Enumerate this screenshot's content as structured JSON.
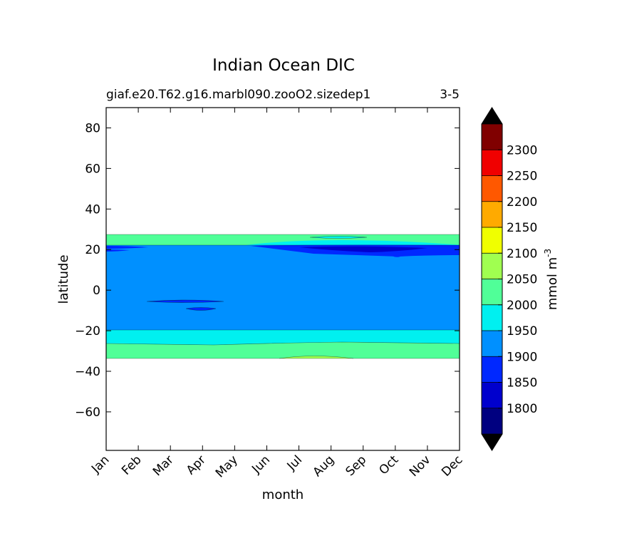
{
  "chart_data": {
    "type": "heatmap",
    "title": "Indian Ocean DIC",
    "subtitle_left": "giaf.e20.T62.g16.marbl090.zooO2.sizedep1",
    "subtitle_right": "3-5",
    "xlabel": "month",
    "ylabel": "latitude",
    "x_ticks": [
      "Jan",
      "Feb",
      "Mar",
      "Apr",
      "May",
      "Jun",
      "Jul",
      "Aug",
      "Sep",
      "Oct",
      "Nov",
      "Dec"
    ],
    "y_ticks": [
      80,
      60,
      40,
      20,
      0,
      -20,
      -40,
      -60
    ],
    "ylim": [
      -79,
      90
    ],
    "grid": false,
    "colorbar": {
      "label": "mmol m",
      "label_sup": "-3",
      "levels": [
        1750,
        1800,
        1850,
        1900,
        1950,
        2000,
        2050,
        2100,
        2150,
        2200,
        2250,
        2300,
        2350
      ],
      "tick_labels": [
        "1800",
        "1850",
        "1900",
        "1950",
        "2000",
        "2050",
        "2100",
        "2150",
        "2200",
        "2250",
        "2300"
      ],
      "colors": [
        "#000080",
        "#0000cd",
        "#0028ff",
        "#0090ff",
        "#00f0f0",
        "#50ff98",
        "#a0ff50",
        "#f0ff00",
        "#ffaa00",
        "#ff5800",
        "#f00000",
        "#800000"
      ],
      "extend_low_color": "#000000",
      "extend_high_color": "#000000"
    },
    "bands": [
      {
        "lat_from": 22,
        "lat_to": 27,
        "value_range": [
          2000,
          2050
        ]
      },
      {
        "lat_from": -20,
        "lat_to": 22,
        "value_range": [
          1900,
          1950
        ]
      },
      {
        "lat_from": -27,
        "lat_to": -20,
        "value_range": [
          1950,
          2000
        ]
      },
      {
        "lat_from": -34,
        "lat_to": -27,
        "value_range": [
          2000,
          2050
        ]
      }
    ]
  }
}
